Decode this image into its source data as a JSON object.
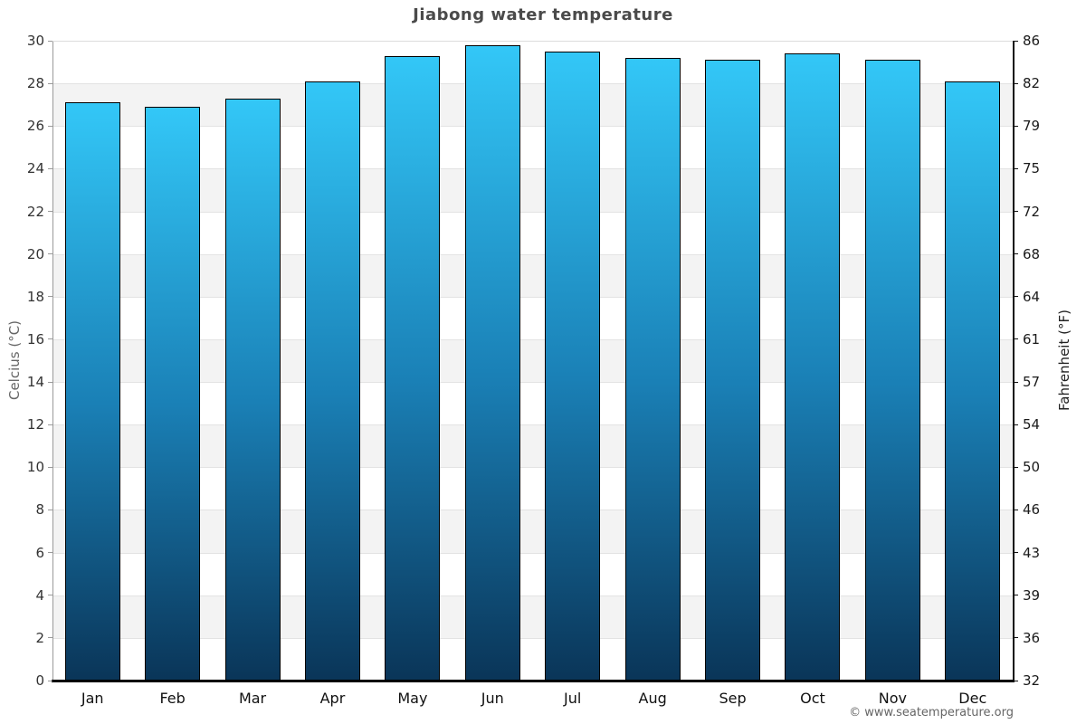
{
  "page": {
    "copyright": "© www.seatemperature.org"
  },
  "chart_data": {
    "type": "bar",
    "title": "Jiabong water temperature",
    "categories": [
      "Jan",
      "Feb",
      "Mar",
      "Apr",
      "May",
      "Jun",
      "Jul",
      "Aug",
      "Sep",
      "Oct",
      "Nov",
      "Dec"
    ],
    "series": [
      {
        "name": "Water temperature (°C)",
        "values": [
          27.1,
          26.9,
          27.3,
          28.1,
          29.3,
          29.8,
          29.5,
          29.2,
          29.1,
          29.4,
          29.1,
          28.1
        ]
      }
    ],
    "xlabel": "",
    "ylabel_left": "Celcius (°C)",
    "ylabel_right": "Fahrenheit (°F)",
    "ylim_celsius": [
      0,
      30
    ],
    "yticks_celsius": [
      0,
      2,
      4,
      6,
      8,
      10,
      12,
      14,
      16,
      18,
      20,
      22,
      24,
      26,
      28,
      30
    ],
    "yticks_fahrenheit": [
      32,
      36,
      39,
      43,
      46,
      50,
      54,
      57,
      61,
      64,
      68,
      72,
      75,
      79,
      82,
      86
    ],
    "grid": "horizontal-bands-every-2C",
    "legend": "none",
    "colors": {
      "bar_gradient_top": "#33c7f7",
      "bar_gradient_mid": "#1a80b6",
      "bar_gradient_bottom": "#0a3558",
      "bar_border": "#000000",
      "band_gray": "#f3f3f3",
      "gridline": "#e3e3e3",
      "left_axis": "#9a9a9a",
      "right_axis": "#111111",
      "bottom_axis": "#000000",
      "title_text": "#4a4a4a"
    }
  }
}
